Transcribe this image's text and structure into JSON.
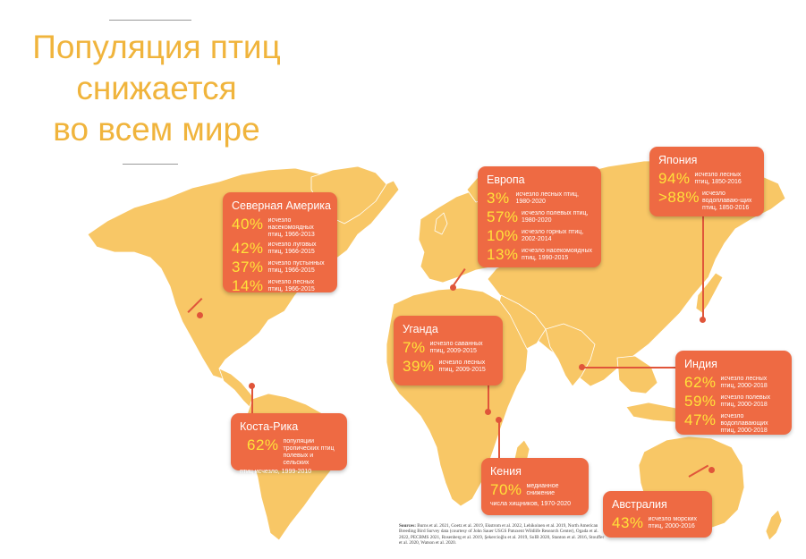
{
  "title": {
    "line1": "Популяция птиц",
    "line2": "снижается",
    "line3": "во всем мире"
  },
  "colors": {
    "title": "#f0b43c",
    "land": "#f8c766",
    "card": "#ee6a43",
    "percent": "#ffe23a"
  },
  "cards": {
    "north_america": {
      "title": "Северная Америка",
      "stats": [
        {
          "pct": "40%",
          "desc": "исчезло насекомоядных птиц, 1966-2013"
        },
        {
          "pct": "42%",
          "desc": "исчезло луговых птиц, 1966-2015"
        },
        {
          "pct": "37%",
          "desc": "исчезло пустынных птиц, 1966-2015"
        },
        {
          "pct": "14%",
          "desc": "исчезло лесных птиц, 1966-2015"
        }
      ]
    },
    "europe": {
      "title": "Европа",
      "stats": [
        {
          "pct": "3%",
          "desc": "исчезло лесных птиц, 1980-2020"
        },
        {
          "pct": "57%",
          "desc": "исчезло полевых птиц, 1980-2020"
        },
        {
          "pct": "10%",
          "desc": "исчезло горных птиц, 2002-2014"
        },
        {
          "pct": "13%",
          "desc": "исчезло насекомоядных птиц, 1990-2015"
        }
      ]
    },
    "japan": {
      "title": "Япония",
      "stats": [
        {
          "pct": "94%",
          "desc": "исчезло лесных птиц, 1850-2016"
        },
        {
          "pct": ">88%",
          "desc": "исчезло водоплаваю-щих птиц, 1850-2016"
        }
      ]
    },
    "uganda": {
      "title": "Уганда",
      "stats": [
        {
          "pct": "7%",
          "desc": "исчезло саванных птиц, 2009-2015"
        },
        {
          "pct": "39%",
          "desc": "исчезло лесных птиц, 2009-2015"
        }
      ]
    },
    "india": {
      "title": "Индия",
      "stats": [
        {
          "pct": "62%",
          "desc": "исчезло лесных птиц, 2000-2018"
        },
        {
          "pct": "59%",
          "desc": "исчезло полевых птиц, 2000-2018"
        },
        {
          "pct": "47%",
          "desc": "исчезло водоплавающих птиц, 2000-2018"
        }
      ]
    },
    "costa_rica": {
      "title": "Коста-Рика",
      "pct": "62%",
      "desc": "популяции тропических птиц полевых и сельских",
      "desc2": "птиц исчезло, 1999-2010"
    },
    "kenya": {
      "title": "Кения",
      "pct": "70%",
      "desc": "медианное снижение",
      "desc2": "числа хищников, 1970-2020"
    },
    "australia": {
      "title": "Австралия",
      "stats": [
        {
          "pct": "43%",
          "desc": "исчезло морских птиц, 2000-2016"
        }
      ]
    }
  },
  "sources": {
    "label": "Sources:",
    "text": "Burns et al. 2021, Goetz et al. 2019, Ekstrom et al. 2022, Lehikoinen et al. 2019, North American Breeding Bird Survey data (courtesy of John Sauer USGS Patuxent Wildlife Research Center), Ogada et al. 2022, PECBMS 2021, Rosenberg et al. 2019, Şekercioğlu et al. 2019, SoIB 2020, Stanton et al. 2016, Stouffer et al. 2020, Watson et al. 2020."
  }
}
